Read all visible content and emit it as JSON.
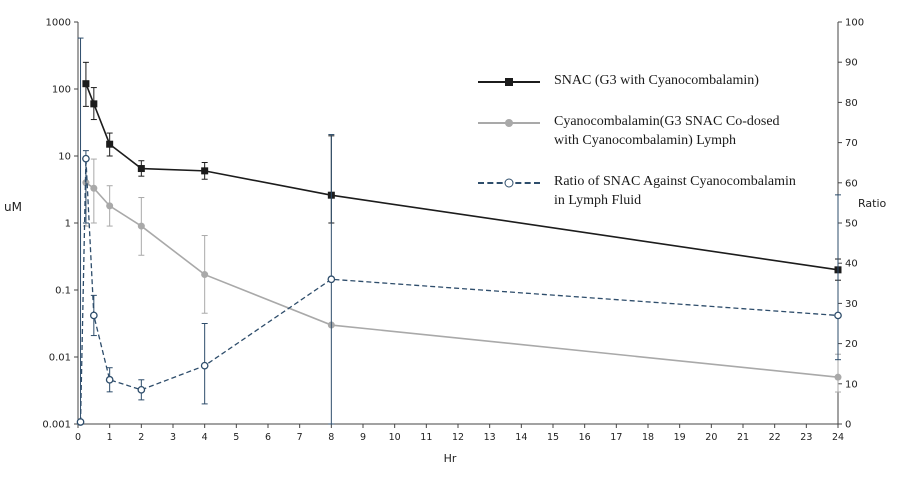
{
  "chart_data": {
    "type": "line",
    "title": "",
    "xlabel": "Hr",
    "ylabel_left": "uM",
    "ylabel_right": "Ratio",
    "grid": false,
    "legend_position": "upper-right-inside",
    "x_axis": {
      "min": 0,
      "max": 24,
      "tick_labels": [
        "0",
        "1",
        "2",
        "3",
        "4",
        "5",
        "6",
        "7",
        "8",
        "9",
        "10",
        "11",
        "12",
        "13",
        "14",
        "15",
        "16",
        "17",
        "18",
        "19",
        "20",
        "21",
        "22",
        "23",
        "24"
      ]
    },
    "left_axis": {
      "scale": "log",
      "min": 0.001,
      "max": 1000,
      "tick_labels": [
        "1000",
        "100",
        "10",
        "1",
        "0.1",
        "0.01",
        "0.001"
      ]
    },
    "right_axis": {
      "scale": "linear",
      "min": 0,
      "max": 100,
      "tick_labels": [
        "100",
        "90",
        "80",
        "70",
        "60",
        "50",
        "40",
        "30",
        "20",
        "10",
        "0"
      ]
    },
    "series": [
      {
        "name": "SNAC (G3 with Cyanocombalamin)",
        "axis": "left",
        "color": "#1c1c1c",
        "marker": "square",
        "line_style": "solid",
        "points": [
          {
            "x": 0.25,
            "y": 120,
            "err_lo": 55,
            "err_hi": 250
          },
          {
            "x": 0.5,
            "y": 60,
            "err_lo": 35,
            "err_hi": 105
          },
          {
            "x": 1,
            "y": 15,
            "err_lo": 10,
            "err_hi": 22
          },
          {
            "x": 2,
            "y": 6.5,
            "err_lo": 5,
            "err_hi": 8.5
          },
          {
            "x": 4,
            "y": 6,
            "err_lo": 4.5,
            "err_hi": 8
          },
          {
            "x": 8,
            "y": 2.6,
            "err_lo": 1,
            "err_hi": 20
          },
          {
            "x": 24,
            "y": 0.2,
            "err_lo": 0.14,
            "err_hi": 0.29
          }
        ]
      },
      {
        "name": "Cyanocombalamin(G3 SNAC Co-dosed with Cyanocombalamin) Lymph",
        "axis": "left",
        "color": "#a9a9a9",
        "marker": "circle",
        "line_style": "solid",
        "points": [
          {
            "x": 0.25,
            "y": 4,
            "err_lo": 0.9,
            "err_hi": 9
          },
          {
            "x": 0.5,
            "y": 3.3,
            "err_lo": 1,
            "err_hi": 9
          },
          {
            "x": 1,
            "y": 1.8,
            "err_lo": 0.9,
            "err_hi": 3.6
          },
          {
            "x": 2,
            "y": 0.9,
            "err_lo": 0.33,
            "err_hi": 2.4
          },
          {
            "x": 4,
            "y": 0.17,
            "err_lo": 0.045,
            "err_hi": 0.65
          },
          {
            "x": 8,
            "y": 0.03
          },
          {
            "x": 24,
            "y": 0.005,
            "err_lo": 0.003,
            "err_hi": 0.011
          }
        ]
      },
      {
        "name": "Ratio of SNAC Against Cyanocombalamin in Lymph Fluid",
        "axis": "right",
        "color": "#2e4d6b",
        "marker": "open-circle",
        "line_style": "dashed",
        "points": [
          {
            "x": 0.08,
            "y": 0.5,
            "err_lo": 0,
            "err_hi": 96
          },
          {
            "x": 0.25,
            "y": 66,
            "err_lo": 50,
            "err_hi": 68
          },
          {
            "x": 0.5,
            "y": 27,
            "err_lo": 22,
            "err_hi": 32
          },
          {
            "x": 1,
            "y": 11,
            "err_lo": 8,
            "err_hi": 14
          },
          {
            "x": 2,
            "y": 8.5,
            "err_lo": 6,
            "err_hi": 11
          },
          {
            "x": 4,
            "y": 14.5,
            "err_lo": 5,
            "err_hi": 25
          },
          {
            "x": 8,
            "y": 36,
            "err_lo": 0,
            "err_hi": 72
          },
          {
            "x": 24,
            "y": 27,
            "err_lo": 16,
            "err_hi": 57
          }
        ]
      }
    ]
  }
}
